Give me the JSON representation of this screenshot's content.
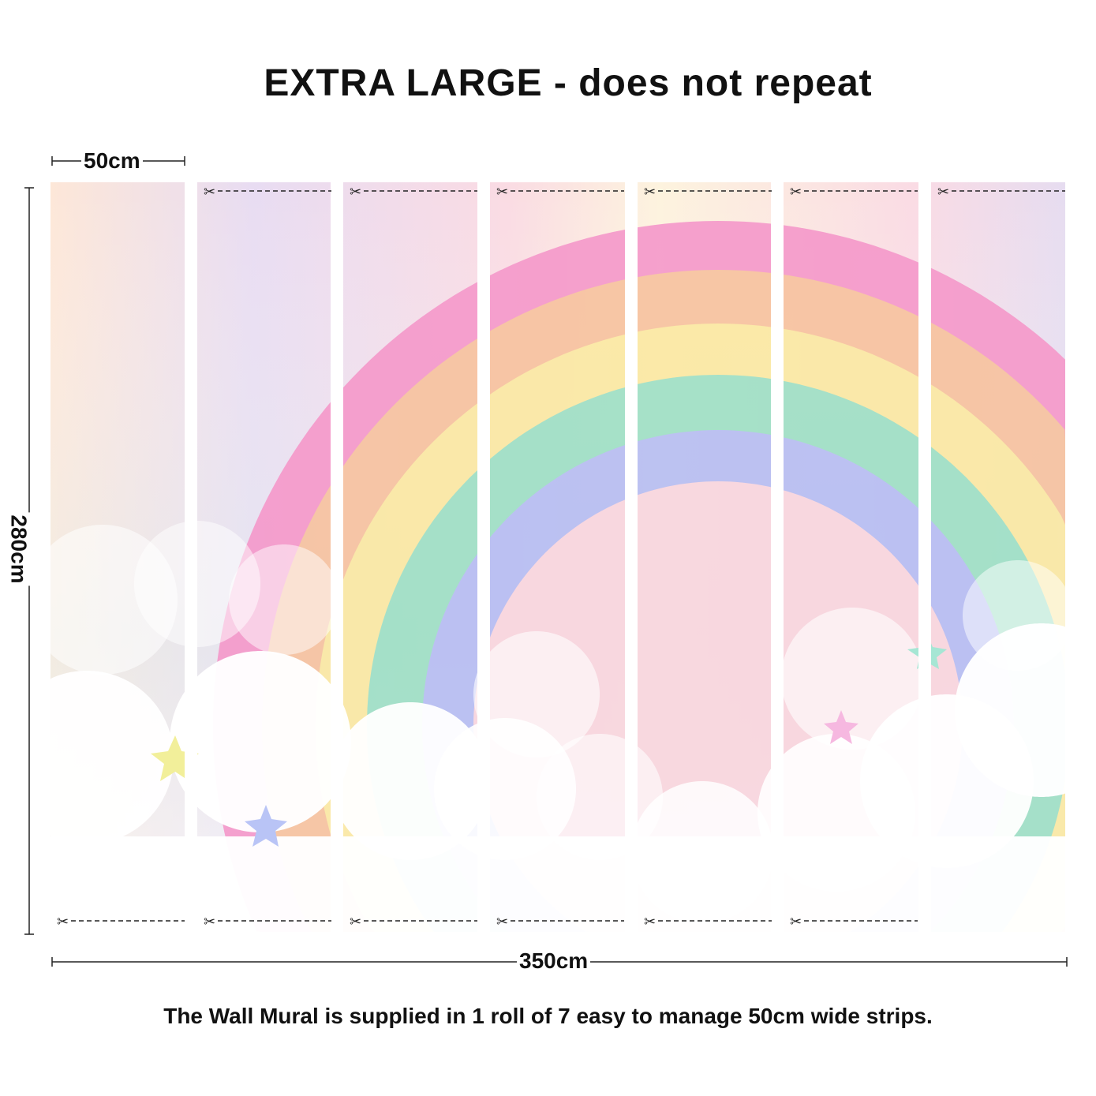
{
  "title": "EXTRA LARGE - does not repeat",
  "dimensions": {
    "strip_width": "50cm",
    "height": "280cm",
    "total_width": "350cm"
  },
  "caption": "The Wall Mural is supplied in 1 roll of 7 easy to manage 50cm wide strips.",
  "strip_count": 7,
  "colors": {
    "rainbow": [
      "#f59acb",
      "#f7c3a0",
      "#fbe9a4",
      "#9fe0c6",
      "#b7bef3"
    ],
    "sky_top": "#fbe6e6",
    "clouds": "#ffffff",
    "stars": [
      "#f2ef9a",
      "#b9c4f6",
      "#f6b8e0",
      "#a6e6d4"
    ]
  },
  "icons": [
    "scissors-icon",
    "dashed-cut-line"
  ]
}
